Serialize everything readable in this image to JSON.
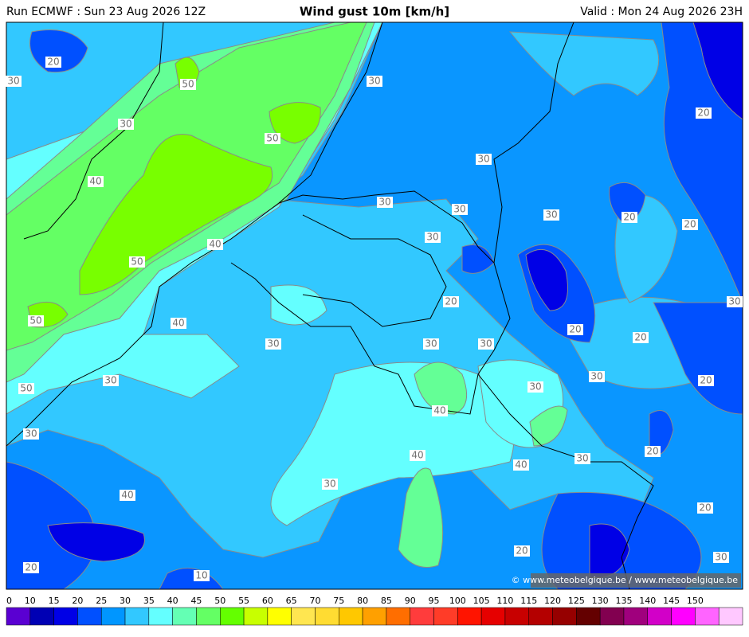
{
  "header": {
    "run": "Run ECMWF : Sun 23 Aug 2026 12Z",
    "title": "Wind gust 10m [km/h]",
    "valid": "Valid : Mon 24 Aug 2026 23H"
  },
  "contour_labels": [
    "20",
    "30",
    "50",
    "30",
    "30",
    "50",
    "30",
    "20",
    "40",
    "30",
    "30",
    "30",
    "20",
    "20",
    "30",
    "40",
    "50",
    "20",
    "30",
    "50",
    "40",
    "20",
    "20",
    "30",
    "30",
    "30",
    "30",
    "30",
    "20",
    "30",
    "50",
    "40",
    "30",
    "40",
    "20",
    "30",
    "40",
    "30",
    "40",
    "20",
    "20",
    "30",
    "20",
    "10"
  ],
  "legend": {
    "ticks": [
      0,
      10,
      15,
      20,
      25,
      30,
      35,
      40,
      45,
      50,
      55,
      60,
      65,
      70,
      75,
      80,
      85,
      90,
      95,
      100,
      105,
      110,
      115,
      120,
      125,
      130,
      135,
      140,
      145,
      150
    ],
    "colors": [
      "#5a00d2",
      "#0000b4",
      "#0000e6",
      "#0050ff",
      "#0096ff",
      "#32c8ff",
      "#64ffff",
      "#64ffb4",
      "#64ff64",
      "#64ff00",
      "#c8ff00",
      "#ffff00",
      "#ffe650",
      "#ffdc32",
      "#ffc800",
      "#ffa000",
      "#ff6e00",
      "#ff3c3c",
      "#ff3c28",
      "#ff1400",
      "#e60000",
      "#c80000",
      "#b40000",
      "#960000",
      "#640000",
      "#820050",
      "#a0007d",
      "#d200c8",
      "#ff00ff",
      "#ff64ff",
      "#ffc8ff"
    ]
  },
  "credit": "© www.meteobelgique.be / www.meteobelgique.be"
}
